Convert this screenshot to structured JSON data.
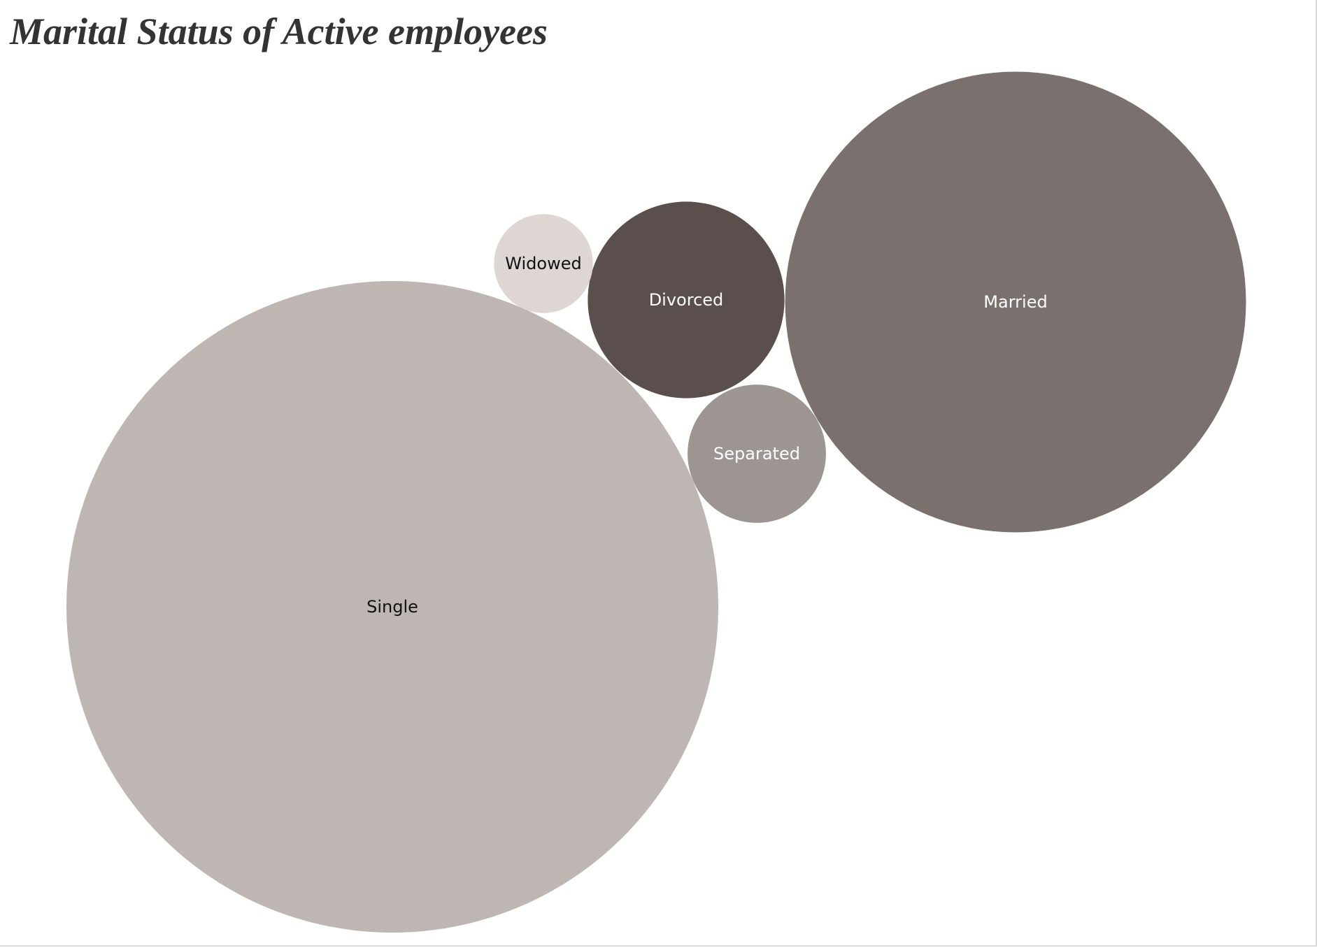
{
  "chart_data": {
    "type": "bubble",
    "title": "Marital Status of Active employees",
    "categories": [
      "Single",
      "Married",
      "Divorced",
      "Separated",
      "Widowed"
    ],
    "values": [
      100,
      50,
      9.1,
      4.5,
      2.3
    ],
    "colors": [
      "#beb6b2",
      "#7a706d",
      "#5a4f4c",
      "#9c9592",
      "#ddd6d3"
    ],
    "label_colors": [
      "#111111",
      "#ffffff",
      "#ffffff",
      "#ffffff",
      "#111111"
    ]
  }
}
